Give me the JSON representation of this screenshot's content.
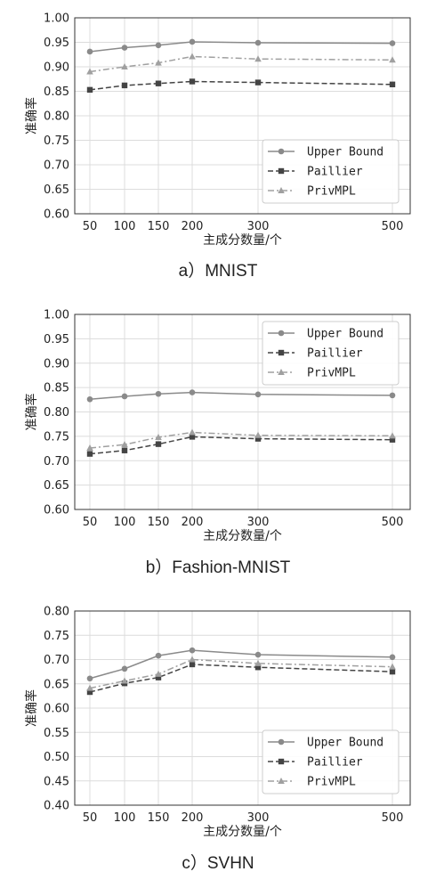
{
  "chart_data": [
    {
      "type": "line",
      "x": [
        50,
        100,
        150,
        200,
        300,
        500
      ],
      "xticks": [
        "50",
        "100",
        "150",
        "200",
        "300",
        "500"
      ],
      "ylim": [
        0.6,
        1.0
      ],
      "yticks": [
        "0.60",
        "0.65",
        "0.70",
        "0.75",
        "0.80",
        "0.85",
        "0.90",
        "0.95",
        "1.00"
      ],
      "xlabel": "主成分数量/个",
      "ylabel": "准确率",
      "legend_position": "lower-right",
      "grid": true,
      "caption": "a）MNIST",
      "series": [
        {
          "name": "Upper Bound",
          "values": [
            0.931,
            0.939,
            0.944,
            0.951,
            0.949,
            0.948
          ],
          "color": "#8a8a8a",
          "marker": "circle",
          "dash": "solid"
        },
        {
          "name": "Paillier",
          "values": [
            0.853,
            0.862,
            0.866,
            0.87,
            0.868,
            0.864
          ],
          "color": "#444444",
          "marker": "square",
          "dash": "dashed"
        },
        {
          "name": "PrivMPL",
          "values": [
            0.89,
            0.9,
            0.908,
            0.921,
            0.916,
            0.914
          ],
          "color": "#a0a0a0",
          "marker": "triangle",
          "dash": "dashdot"
        }
      ]
    },
    {
      "type": "line",
      "x": [
        50,
        100,
        150,
        200,
        300,
        500
      ],
      "xticks": [
        "50",
        "100",
        "150",
        "200",
        "300",
        "500"
      ],
      "ylim": [
        0.6,
        1.0
      ],
      "yticks": [
        "0.60",
        "0.65",
        "0.70",
        "0.75",
        "0.80",
        "0.85",
        "0.90",
        "0.95",
        "1.00"
      ],
      "xlabel": "主成分数量/个",
      "ylabel": "准确率",
      "legend_position": "upper-right",
      "grid": true,
      "caption": "b）Fashion-MNIST",
      "series": [
        {
          "name": "Upper Bound",
          "values": [
            0.826,
            0.832,
            0.837,
            0.84,
            0.836,
            0.834
          ],
          "color": "#8a8a8a",
          "marker": "circle",
          "dash": "solid"
        },
        {
          "name": "Paillier",
          "values": [
            0.714,
            0.721,
            0.734,
            0.749,
            0.745,
            0.743
          ],
          "color": "#444444",
          "marker": "square",
          "dash": "dashed"
        },
        {
          "name": "PrivMPL",
          "values": [
            0.726,
            0.733,
            0.748,
            0.758,
            0.752,
            0.751
          ],
          "color": "#a0a0a0",
          "marker": "triangle",
          "dash": "dashdot"
        }
      ]
    },
    {
      "type": "line",
      "x": [
        50,
        100,
        150,
        200,
        300,
        500
      ],
      "xticks": [
        "50",
        "100",
        "150",
        "200",
        "300",
        "500"
      ],
      "ylim": [
        0.4,
        0.8
      ],
      "yticks": [
        "0.40",
        "0.45",
        "0.50",
        "0.55",
        "0.60",
        "0.65",
        "0.70",
        "0.75",
        "0.80"
      ],
      "xlabel": "主成分数量/个",
      "ylabel": "准确率",
      "legend_position": "lower-right",
      "grid": true,
      "caption": "c）SVHN",
      "series": [
        {
          "name": "Upper Bound",
          "values": [
            0.661,
            0.681,
            0.708,
            0.719,
            0.71,
            0.705
          ],
          "color": "#8a8a8a",
          "marker": "circle",
          "dash": "solid"
        },
        {
          "name": "Paillier",
          "values": [
            0.633,
            0.651,
            0.663,
            0.69,
            0.684,
            0.675
          ],
          "color": "#444444",
          "marker": "square",
          "dash": "dashed"
        },
        {
          "name": "PrivMPL",
          "values": [
            0.641,
            0.656,
            0.67,
            0.7,
            0.692,
            0.685
          ],
          "color": "#a0a0a0",
          "marker": "triangle",
          "dash": "dashdot"
        }
      ]
    }
  ]
}
